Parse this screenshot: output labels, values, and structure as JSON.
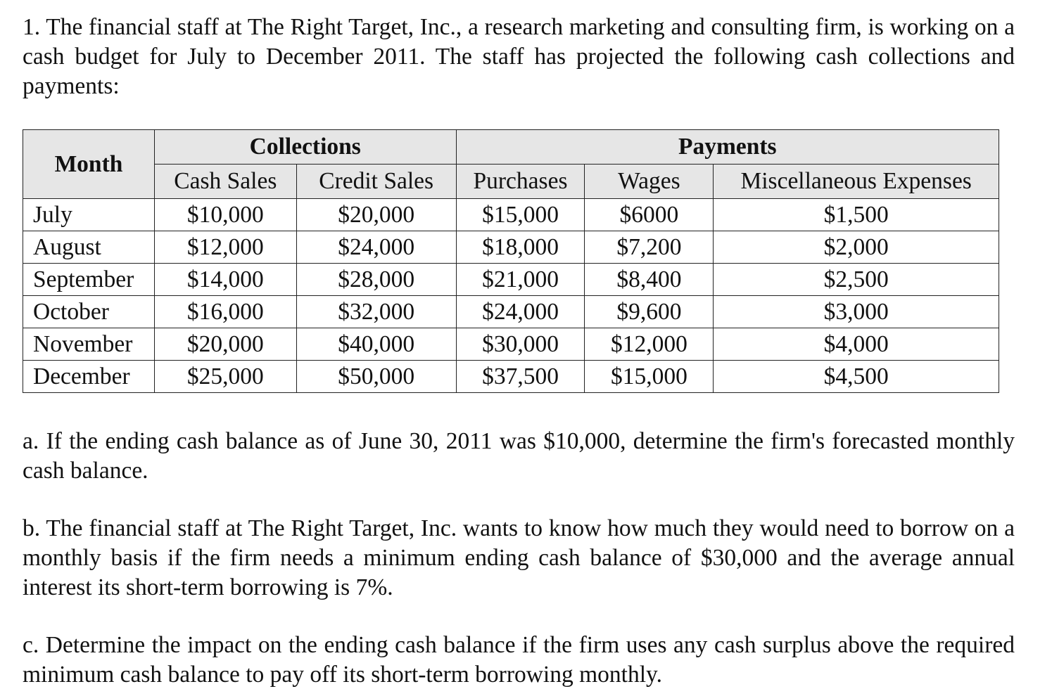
{
  "problem": {
    "intro": "1. The financial staff at The Right Target, Inc., a research marketing and consulting firm, is working on a cash budget for July to December 2011. The staff has projected the following cash collections and payments:",
    "table": {
      "month_header": "Month",
      "collections_header": "Collections",
      "payments_header": "Payments",
      "columns": [
        "Cash Sales",
        "Credit Sales",
        "Purchases",
        "Wages",
        "Miscellaneous Expenses"
      ],
      "rows": [
        {
          "month": "July",
          "cash_sales": "$10,000",
          "credit_sales": "$20,000",
          "purchases": "$15,000",
          "wages": "$6000",
          "misc": "$1,500"
        },
        {
          "month": "August",
          "cash_sales": "$12,000",
          "credit_sales": "$24,000",
          "purchases": "$18,000",
          "wages": "$7,200",
          "misc": "$2,000"
        },
        {
          "month": "September",
          "cash_sales": "$14,000",
          "credit_sales": "$28,000",
          "purchases": "$21,000",
          "wages": "$8,400",
          "misc": "$2,500"
        },
        {
          "month": "October",
          "cash_sales": "$16,000",
          "credit_sales": "$32,000",
          "purchases": "$24,000",
          "wages": "$9,600",
          "misc": "$3,000"
        },
        {
          "month": "November",
          "cash_sales": "$20,000",
          "credit_sales": "$40,000",
          "purchases": "$30,000",
          "wages": "$12,000",
          "misc": "$4,000"
        },
        {
          "month": "December",
          "cash_sales": "$25,000",
          "credit_sales": "$50,000",
          "purchases": "$37,500",
          "wages": "$15,000",
          "misc": "$4,500"
        }
      ]
    },
    "question_a": "a. If the ending cash balance as of June 30, 2011 was $10,000, determine the firm's forecasted monthly cash balance.",
    "question_b": "b. The financial staff at The Right Target, Inc. wants to know how much they would need to borrow on a monthly basis if the firm needs a minimum ending cash balance of $30,000 and the average annual interest its short-term borrowing is 7%.",
    "question_c": "c. Determine the impact on the ending cash balance if the firm uses any cash surplus above the required minimum cash balance to pay off its short-term borrowing monthly."
  }
}
